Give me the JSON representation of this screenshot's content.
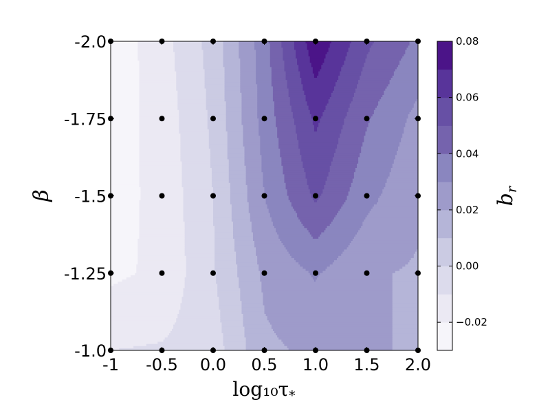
{
  "chart_data": {
    "type": "contour",
    "xlabel": "log₁₀τ",
    "xlabel_sub": "*",
    "ylabel": "β",
    "colorbar_label": "b",
    "colorbar_label_sub": "r",
    "x": [
      -1.0,
      -0.5,
      0.0,
      0.5,
      1.0,
      1.5,
      2.0
    ],
    "y": [
      -2.0,
      -1.75,
      -1.5,
      -1.25,
      -1.0
    ],
    "x_tick_labels": [
      "-1",
      "-0.5",
      "0.0",
      "0.5",
      "1.0",
      "1.5",
      "2.0"
    ],
    "y_tick_labels": [
      "-2.0",
      "-1.75",
      "-1.5",
      "-1.25",
      "-1.0"
    ],
    "xlim": [
      -1.0,
      2.0
    ],
    "ylim": [
      -2.0,
      -1.0
    ],
    "y_inverted": true,
    "z": [
      [
        -0.027,
        -0.014,
        0.004,
        0.036,
        0.078,
        0.052,
        0.038
      ],
      [
        -0.025,
        -0.016,
        0.002,
        0.034,
        0.062,
        0.041,
        0.027
      ],
      [
        -0.024,
        -0.017,
        0.0,
        0.03,
        0.052,
        0.033,
        0.022
      ],
      [
        -0.022,
        -0.018,
        -0.001,
        0.022,
        0.031,
        0.021,
        0.019
      ],
      [
        -0.01,
        -0.009,
        -0.005,
        0.018,
        0.022,
        0.021,
        0.019
      ]
    ],
    "contour_levels": [
      -0.03,
      -0.02,
      -0.01,
      0.0,
      0.01,
      0.02,
      0.03,
      0.04,
      0.05,
      0.06,
      0.07,
      0.08
    ],
    "band_colors": [
      "#f6f5fa",
      "#ebe9f3",
      "#dcdbec",
      "#cbcbe3",
      "#b5b5d8",
      "#9e9bca",
      "#8a86bf",
      "#7563ad",
      "#6750a5",
      "#58349a",
      "#4b1488"
    ],
    "colorbar_ticks": [
      -0.02,
      0.0,
      0.02,
      0.04,
      0.06,
      0.08
    ],
    "colorbar_tick_labels": [
      "−0.02",
      "0.00",
      "0.02",
      "0.04",
      "0.06",
      "0.08"
    ],
    "colorbar_range": [
      -0.03,
      0.08
    ],
    "markers": "black dots at every grid point",
    "grid": false
  }
}
